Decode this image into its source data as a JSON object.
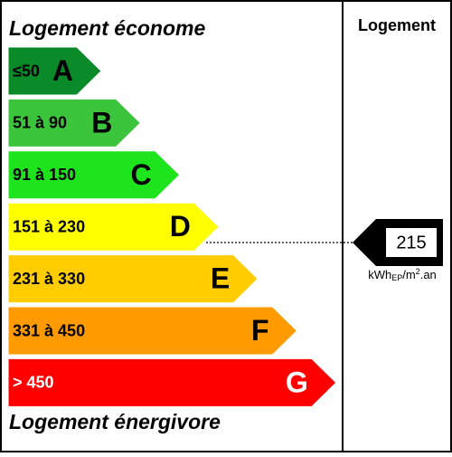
{
  "header_top": "Logement économe",
  "header_bottom": "Logement énergivore",
  "column_title": "Logement",
  "classes": [
    {
      "range": "≤50",
      "letter": "A",
      "color": "#0b8a2a",
      "text_color": "#000000"
    },
    {
      "range": "51 à 90",
      "letter": "B",
      "color": "#3cc43c",
      "text_color": "#000000"
    },
    {
      "range": "91 à 150",
      "letter": "C",
      "color": "#1ee41e",
      "text_color": "#000000"
    },
    {
      "range": "151 à 230",
      "letter": "D",
      "color": "#ffff00",
      "text_color": "#000000"
    },
    {
      "range": "231 à 330",
      "letter": "E",
      "color": "#ffcc00",
      "text_color": "#000000"
    },
    {
      "range": "331 à 450",
      "letter": "F",
      "color": "#ff9a00",
      "text_color": "#000000"
    },
    {
      "range": "> 450",
      "letter": "G",
      "color": "#ff0000",
      "text_color": "#ffffff"
    }
  ],
  "indicator": {
    "value": 215,
    "unit": {
      "prefix": "kWh",
      "sub": "EP",
      "mid": "/m",
      "sup": "2",
      "suffix": ".an"
    }
  }
}
